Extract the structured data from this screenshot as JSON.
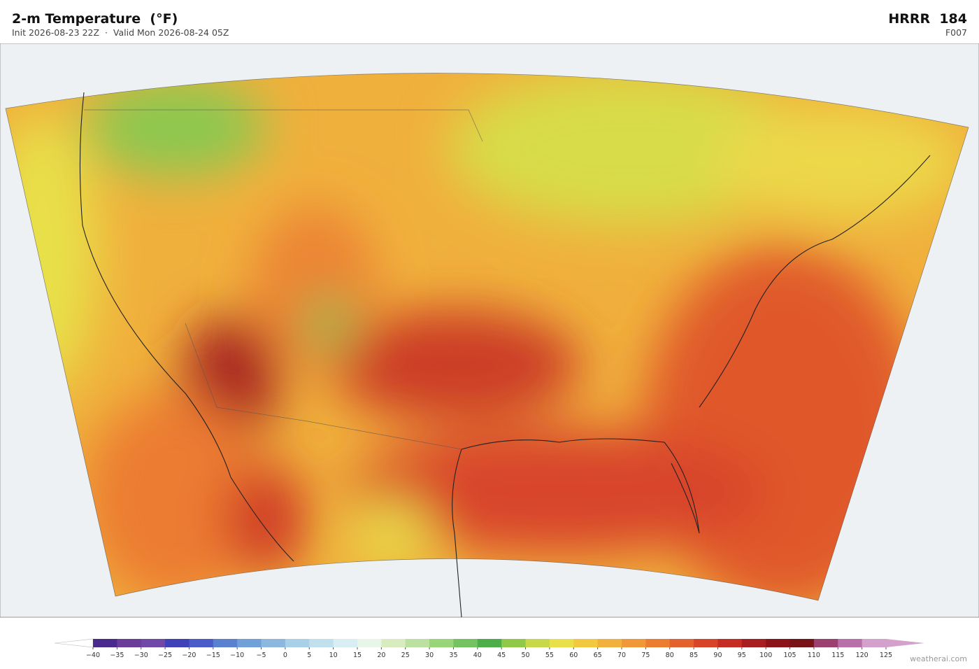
{
  "header": {
    "title": "2-m Temperature  (°F)",
    "subtitle": "Init 2026-08-23 22Z  ·  Valid Mon 2026-08-24 05Z",
    "model": "HRRR  184",
    "forecast_hour": "F007"
  },
  "colorbar": {
    "ticks": [
      {
        "value": -40,
        "label": "−40"
      },
      {
        "value": -35,
        "label": "−35"
      },
      {
        "value": -30,
        "label": "−30"
      },
      {
        "value": -25,
        "label": "−25"
      },
      {
        "value": -20,
        "label": "−20"
      },
      {
        "value": -15,
        "label": "−15"
      },
      {
        "value": -10,
        "label": "−10"
      },
      {
        "value": -5,
        "label": "−5"
      },
      0,
      5,
      10,
      15,
      20,
      25,
      30,
      35,
      40,
      45,
      50,
      55,
      60,
      65,
      70,
      75,
      80,
      85,
      90,
      95,
      100,
      105,
      110,
      115,
      120,
      125
    ],
    "colors": [
      "#4a2a8c",
      "#6a3d9a",
      "#7048a8",
      "#4040b8",
      "#4a5cc8",
      "#5a80d0",
      "#70a0d8",
      "#8cb8e0",
      "#a8d0e8",
      "#c0e0ee",
      "#d8eef2",
      "#e8f6e8",
      "#d8ecc0",
      "#bce0a0",
      "#98d478",
      "#74c260",
      "#4cae48",
      "#90c848",
      "#c8d848",
      "#e8e048",
      "#f2c840",
      "#f2b03c",
      "#f09838",
      "#ec7c30",
      "#e4602c",
      "#d84428",
      "#c42c24",
      "#a81e20",
      "#8c1418",
      "#781418",
      "#9c4070",
      "#b870a8",
      "#d4a0cc"
    ],
    "under_color": "#ffffff",
    "over_color": "#d4a0cc"
  },
  "credit": "weatherai.com"
}
